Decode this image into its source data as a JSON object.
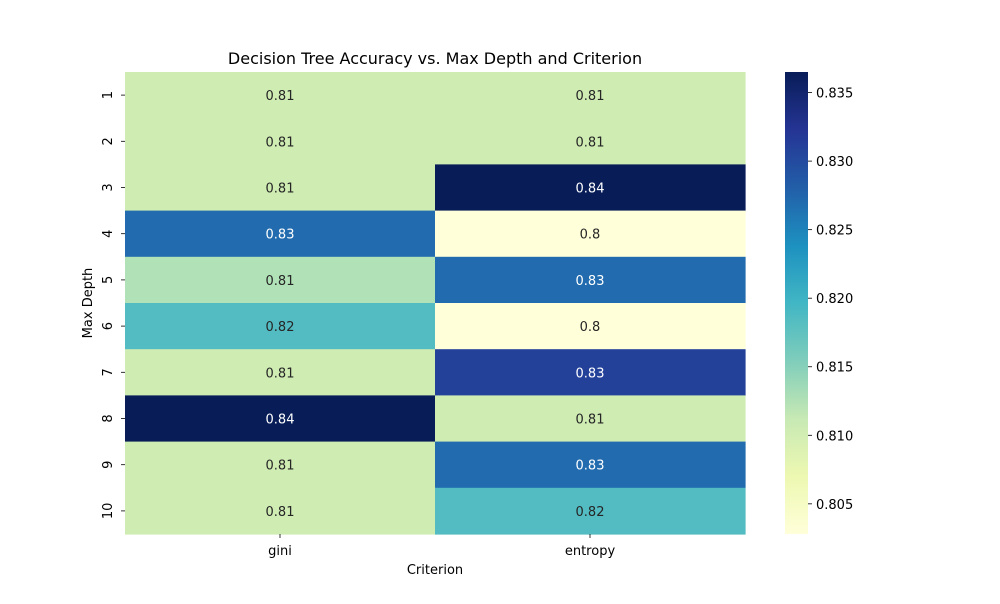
{
  "chart_data": {
    "type": "heatmap",
    "title": "Decision Tree Accuracy vs. Max Depth and Criterion",
    "xlabel": "Criterion",
    "ylabel": "Max Depth",
    "x_categories": [
      "gini",
      "entropy"
    ],
    "y_categories": [
      "1",
      "2",
      "3",
      "4",
      "5",
      "6",
      "7",
      "8",
      "9",
      "10"
    ],
    "values": [
      [
        0.8103,
        0.8103
      ],
      [
        0.8103,
        0.8103
      ],
      [
        0.8103,
        0.8365
      ],
      [
        0.827,
        0.8028
      ],
      [
        0.8125,
        0.827
      ],
      [
        0.8185,
        0.8028
      ],
      [
        0.8103,
        0.831
      ],
      [
        0.8365,
        0.8103
      ],
      [
        0.8103,
        0.827
      ],
      [
        0.8103,
        0.8185
      ]
    ],
    "annotations": [
      [
        "0.81",
        "0.81"
      ],
      [
        "0.81",
        "0.81"
      ],
      [
        "0.81",
        "0.84"
      ],
      [
        "0.83",
        "0.8"
      ],
      [
        "0.81",
        "0.83"
      ],
      [
        "0.82",
        "0.8"
      ],
      [
        "0.81",
        "0.83"
      ],
      [
        "0.84",
        "0.81"
      ],
      [
        "0.81",
        "0.83"
      ],
      [
        "0.81",
        "0.82"
      ]
    ],
    "colormap": "YlGnBu",
    "colorbar": {
      "range": [
        0.8028,
        0.8365
      ],
      "ticks": [
        "0.805",
        "0.810",
        "0.815",
        "0.820",
        "0.825",
        "0.830",
        "0.835"
      ]
    }
  }
}
